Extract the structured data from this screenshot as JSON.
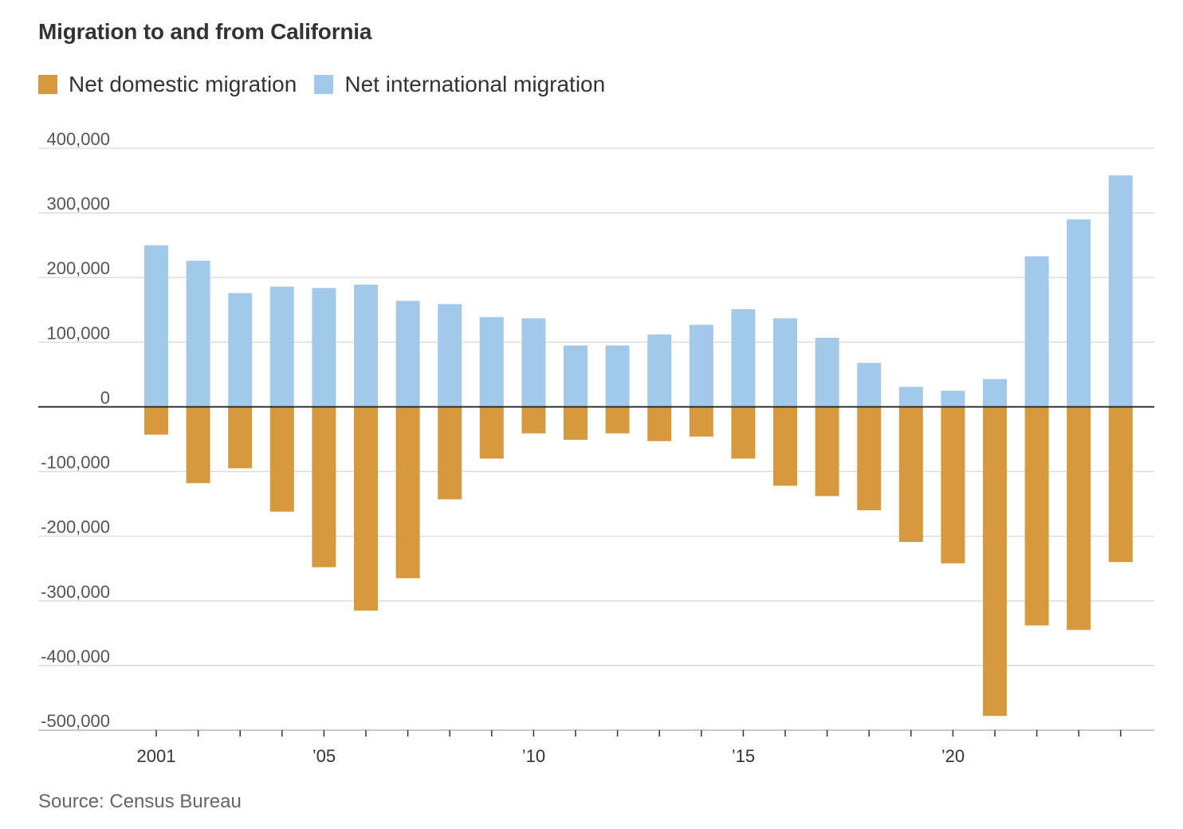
{
  "chart_data": {
    "type": "bar",
    "title": "Migration to and from California",
    "x": [
      2001,
      2002,
      2003,
      2004,
      2005,
      2006,
      2007,
      2008,
      2009,
      2010,
      2011,
      2012,
      2013,
      2014,
      2015,
      2016,
      2017,
      2018,
      2019,
      2020,
      2021,
      2022,
      2023,
      2024
    ],
    "series": [
      {
        "name": "Net domestic migration",
        "color": "#d6993e",
        "values": [
          -43000,
          -118000,
          -95000,
          -162000,
          -248000,
          -315000,
          -265000,
          -143000,
          -80000,
          -41000,
          -51000,
          -41000,
          -53000,
          -46000,
          -80000,
          -122000,
          -138000,
          -160000,
          -209000,
          -242000,
          -478000,
          -338000,
          -345000,
          -240000
        ]
      },
      {
        "name": "Net international migration",
        "color": "#a3c9ea",
        "values": [
          250000,
          226000,
          176000,
          186000,
          184000,
          189000,
          164000,
          159000,
          139000,
          137000,
          95000,
          95000,
          112000,
          127000,
          151000,
          137000,
          107000,
          68000,
          31000,
          25000,
          43000,
          233000,
          290000,
          358000
        ]
      }
    ],
    "ylim": [
      -500000,
      400000
    ],
    "y_ticks": [
      400000,
      300000,
      200000,
      100000,
      0,
      -100000,
      -200000,
      -300000,
      -400000,
      -500000
    ],
    "y_tick_labels": [
      "400,000",
      "300,000",
      "200,000",
      "100,000",
      "0",
      "-100,000",
      "-200,000",
      "-300,000",
      "-400,000",
      "-500,000"
    ],
    "x_tick_labels": [
      {
        "year": 2001,
        "label": "2001"
      },
      {
        "year": 2005,
        "label": "’05"
      },
      {
        "year": 2010,
        "label": "’10"
      },
      {
        "year": 2015,
        "label": "’15"
      },
      {
        "year": 2020,
        "label": "’20"
      }
    ],
    "xlabel": "",
    "ylabel": "",
    "grid": true,
    "legend_position": "top-left",
    "source": "Source: Census Bureau"
  }
}
